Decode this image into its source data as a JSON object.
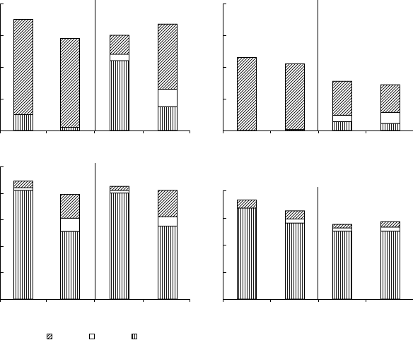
{
  "chart_data": [
    {
      "type": "bar",
      "stacked": true,
      "panel": "top-left",
      "categories": [
        "",
        "",
        "",
        ""
      ],
      "ylim": [
        0,
        4
      ],
      "series": [
        {
          "pattern": "vertical-lines",
          "values": [
            0.5,
            0.1,
            2.2,
            0.75
          ]
        },
        {
          "pattern": "open",
          "values": [
            0.0,
            0.0,
            0.2,
            0.55
          ]
        },
        {
          "pattern": "diagonal-hatch",
          "values": [
            3.0,
            2.8,
            0.6,
            2.05
          ]
        }
      ]
    },
    {
      "type": "bar",
      "stacked": true,
      "panel": "top-right",
      "categories": [
        "",
        "",
        "",
        ""
      ],
      "ylim": [
        0,
        4
      ],
      "series": [
        {
          "pattern": "vertical-lines",
          "values": [
            0.0,
            0.03,
            0.28,
            0.22
          ]
        },
        {
          "pattern": "open",
          "values": [
            0.0,
            0.0,
            0.2,
            0.35
          ]
        },
        {
          "pattern": "diagonal-hatch",
          "values": [
            2.3,
            2.07,
            1.07,
            0.87
          ]
        }
      ]
    },
    {
      "type": "bar",
      "stacked": true,
      "panel": "bottom-left",
      "categories": [
        "",
        "",
        "",
        ""
      ],
      "ylim": [
        0,
        5
      ],
      "series": [
        {
          "pattern": "vertical-lines",
          "values": [
            4.1,
            2.55,
            4.0,
            2.75
          ]
        },
        {
          "pattern": "open",
          "values": [
            0.1,
            0.5,
            0.1,
            0.35
          ]
        },
        {
          "pattern": "diagonal-hatch",
          "values": [
            0.25,
            0.9,
            0.15,
            1.0
          ]
        }
      ]
    },
    {
      "type": "bar",
      "stacked": true,
      "panel": "bottom-right",
      "categories": [
        "",
        "",
        "",
        ""
      ],
      "ylim": [
        0,
        4
      ],
      "series": [
        {
          "pattern": "vertical-lines",
          "values": [
            3.35,
            2.8,
            2.5,
            2.5
          ]
        },
        {
          "pattern": "open",
          "values": [
            0.0,
            0.15,
            0.12,
            0.15
          ]
        },
        {
          "pattern": "diagonal-hatch",
          "values": [
            0.3,
            0.3,
            0.13,
            0.2
          ]
        }
      ]
    }
  ],
  "legend": {
    "placement": "bottom-left",
    "entries": [
      {
        "pattern": "diagonal-hatch",
        "label": ""
      },
      {
        "pattern": "open",
        "label": ""
      },
      {
        "pattern": "vertical-lines",
        "label": ""
      }
    ]
  }
}
